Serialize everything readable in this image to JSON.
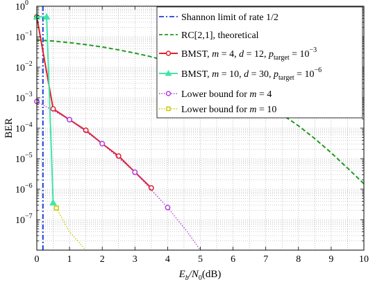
{
  "chart_data": {
    "type": "line",
    "title": "",
    "xlabel": {
      "main": "E",
      "sub1": "b",
      "slash": "/N",
      "sub2": "0",
      "unit": "(dB)"
    },
    "ylabel": "BER",
    "xlim": [
      0,
      10
    ],
    "ylim_log10": [
      -8,
      0
    ],
    "y_scale": "log",
    "grid": true,
    "legend_position": "top-right",
    "x_ticks": [
      "0",
      "1",
      "2",
      "3",
      "4",
      "5",
      "6",
      "7",
      "8",
      "9",
      "10"
    ],
    "y_ticks": [
      {
        "base": "10",
        "exp": "0"
      },
      {
        "base": "10",
        "exp": "-1"
      },
      {
        "base": "10",
        "exp": "-2"
      },
      {
        "base": "10",
        "exp": "-3"
      },
      {
        "base": "10",
        "exp": "-4"
      },
      {
        "base": "10",
        "exp": "-5"
      },
      {
        "base": "10",
        "exp": "-6"
      },
      {
        "base": "10",
        "exp": "-7"
      }
    ],
    "legend": {
      "shannon": "Shannon limit of rate 1/2",
      "rc": "RC[2,1], theoretical",
      "bmst4": {
        "pre": "BMST,  ",
        "m": "m",
        "mval": " = 4,  ",
        "d": "d",
        "dval": " = 12,  ",
        "p": "p",
        "psub": "target",
        "eq": " = 10",
        "exp": "−3"
      },
      "bmst10": {
        "pre": "BMST,  ",
        "m": "m",
        "mval": " = 10,  ",
        "d": "d",
        "dval": " = 30,  ",
        "p": "p",
        "psub": "target",
        "eq": " = 10",
        "exp": "−6"
      },
      "lb4": {
        "pre": "Lower bound for  ",
        "m": "m",
        "mval": " = 4"
      },
      "lb10": {
        "pre": "Lower bound for  ",
        "m": "m",
        "mval": " = 10"
      }
    },
    "series": [
      {
        "id": "shannon",
        "color": "#1a3fdc",
        "style": "dashdot",
        "x": [
          0.187,
          0.187
        ],
        "y": [
          1.0,
          1e-08
        ]
      },
      {
        "id": "rc",
        "color": "#1f9a1f",
        "style": "dashed",
        "x": [
          0,
          0.5,
          1,
          1.5,
          2,
          2.5,
          3,
          3.5,
          4,
          4.5,
          5,
          5.5,
          6,
          6.5,
          7,
          7.5,
          8,
          8.5,
          9,
          9.5,
          10
        ],
        "y": [
          0.078,
          0.072,
          0.064,
          0.055,
          0.046,
          0.037,
          0.029,
          0.022,
          0.0155,
          0.0105,
          0.0068,
          0.0042,
          0.0024,
          0.0013,
          0.00063,
          0.00028,
          0.00012,
          4.53e-05,
          1.56e-05,
          4.9e-06,
          1.5e-06
        ]
      },
      {
        "id": "bmst4",
        "color": "#e21f26",
        "style": "solid",
        "marker": "circle",
        "x": [
          0,
          0.5,
          1,
          1.5,
          2,
          2.5,
          3,
          3.5
        ],
        "y": [
          0.45,
          0.00043,
          0.00019,
          8.5e-05,
          3.1e-05,
          1.22e-05,
          3.6e-06,
          1.1e-06
        ]
      },
      {
        "id": "bmst10",
        "color": "#3fe6a8",
        "style": "solid",
        "marker": "triangle",
        "x": [
          0,
          0.3,
          0.5
        ],
        "y": [
          0.45,
          0.45,
          3.6e-07
        ]
      },
      {
        "id": "lb4",
        "color": "#b340e0",
        "style": "dotted",
        "marker": "circle-open",
        "x": [
          0,
          1,
          2,
          3,
          4,
          4.6,
          5
        ],
        "y": [
          0.00075,
          0.00019,
          3.1e-05,
          3.6e-06,
          2.5e-07,
          4e-08,
          1e-08
        ],
        "marker_points": [
          [
            0,
            0.00075
          ],
          [
            1,
            0.00019
          ],
          [
            2,
            3.1e-05
          ],
          [
            3,
            3.6e-06
          ],
          [
            4,
            2.5e-07
          ]
        ]
      },
      {
        "id": "lb10",
        "color": "#c8c800",
        "style": "dotted",
        "marker": "square-open",
        "x": [
          0.6,
          1.0,
          1.5
        ],
        "y": [
          2.4e-07,
          4e-08,
          1e-08
        ],
        "marker_points": [
          [
            0.6,
            2.4e-07
          ]
        ]
      }
    ]
  }
}
